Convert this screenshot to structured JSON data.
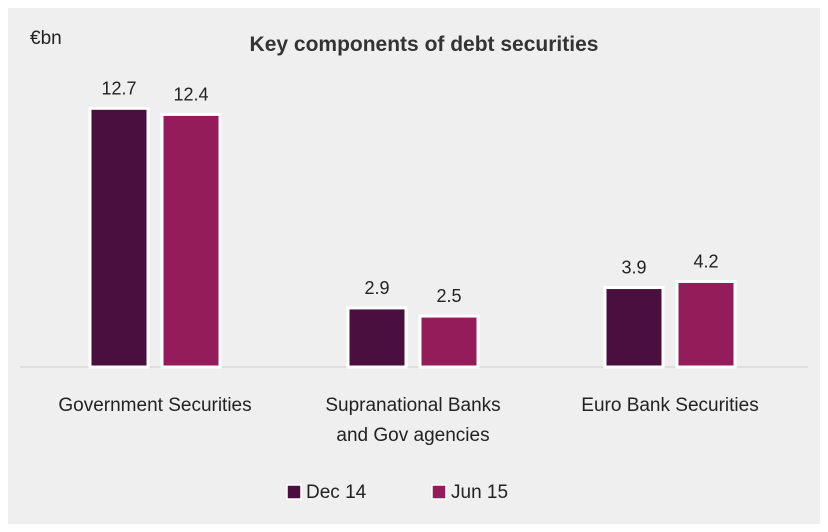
{
  "chart_data": {
    "type": "bar",
    "title": "Key components of debt securities",
    "unit_label": "€bn",
    "categories": [
      [
        "Government Securities"
      ],
      [
        "Supranational Banks",
        "and Gov agencies"
      ],
      [
        "Euro Bank Securities"
      ]
    ],
    "series": [
      {
        "name": "Dec 14",
        "values": [
          12.7,
          2.9,
          3.9
        ],
        "color": "#4a0f3f"
      },
      {
        "name": "Jun 15",
        "values": [
          12.4,
          2.5,
          4.2
        ],
        "color": "#941c5a"
      }
    ],
    "ylim": [
      0,
      13.5
    ],
    "grid": false,
    "legend": "bottom-center"
  }
}
